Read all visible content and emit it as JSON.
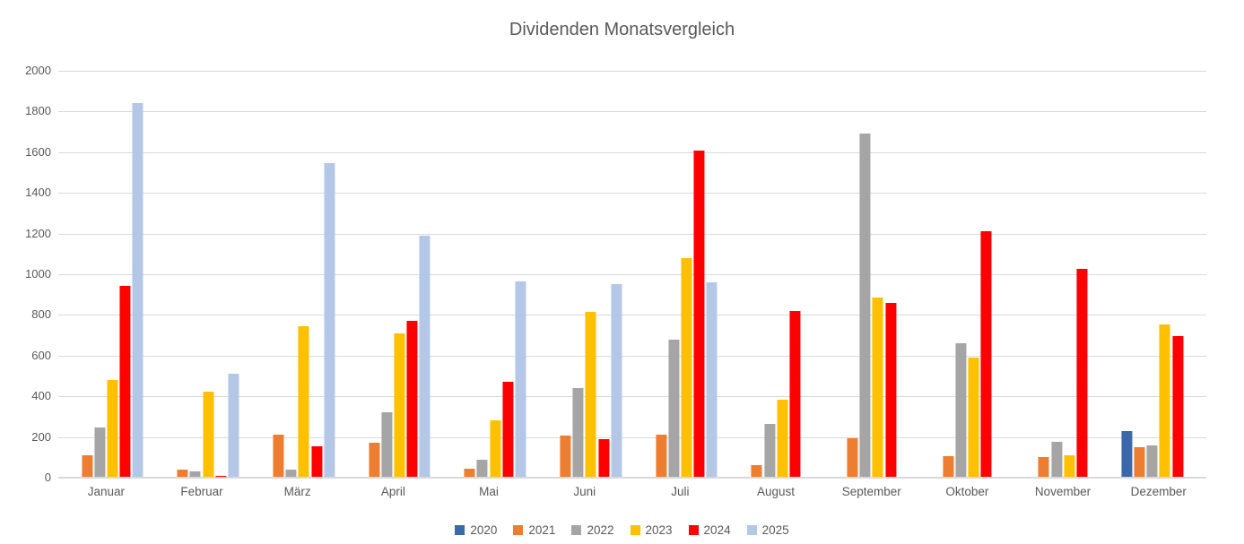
{
  "chart": {
    "title": "Dividenden Monatsvergleich"
  },
  "style": {
    "background": "#FFFFFF",
    "title_color": "#595959",
    "axis_label_color": "#595959",
    "gridline_color": "#D9D9D9",
    "axis_line_color": "#D9D9D9"
  },
  "chart_data": {
    "type": "bar",
    "title": "Dividenden Monatsvergleich",
    "xlabel": "",
    "ylabel": "",
    "ylim": [
      0,
      2000
    ],
    "yticks": [
      0,
      200,
      400,
      600,
      800,
      1000,
      1200,
      1400,
      1600,
      1800,
      2000
    ],
    "grid": true,
    "legend_position": "bottom",
    "categories": [
      "Januar",
      "Februar",
      "März",
      "April",
      "Mai",
      "Juni",
      "Juli",
      "August",
      "September",
      "Oktober",
      "November",
      "Dezember"
    ],
    "series": [
      {
        "name": "2020",
        "color": "#3A68A9",
        "values": [
          null,
          null,
          null,
          null,
          null,
          null,
          null,
          null,
          null,
          null,
          null,
          230
        ]
      },
      {
        "name": "2021",
        "color": "#ED7D31",
        "values": [
          110,
          40,
          210,
          170,
          45,
          205,
          210,
          60,
          195,
          105,
          100,
          150
        ]
      },
      {
        "name": "2022",
        "color": "#A5A5A5",
        "values": [
          245,
          30,
          40,
          320,
          90,
          440,
          680,
          265,
          1690,
          660,
          175,
          160
        ]
      },
      {
        "name": "2023",
        "color": "#FFC000",
        "values": [
          480,
          425,
          745,
          710,
          280,
          815,
          1080,
          385,
          885,
          590,
          110,
          755
        ]
      },
      {
        "name": "2024",
        "color": "#FF0000",
        "values": [
          945,
          8,
          155,
          770,
          470,
          190,
          1610,
          820,
          860,
          1210,
          1025,
          695
        ]
      },
      {
        "name": "2025",
        "color": "#B4C7E7",
        "values": [
          1840,
          510,
          1545,
          1190,
          965,
          950,
          960,
          null,
          null,
          null,
          null,
          null
        ]
      }
    ]
  }
}
